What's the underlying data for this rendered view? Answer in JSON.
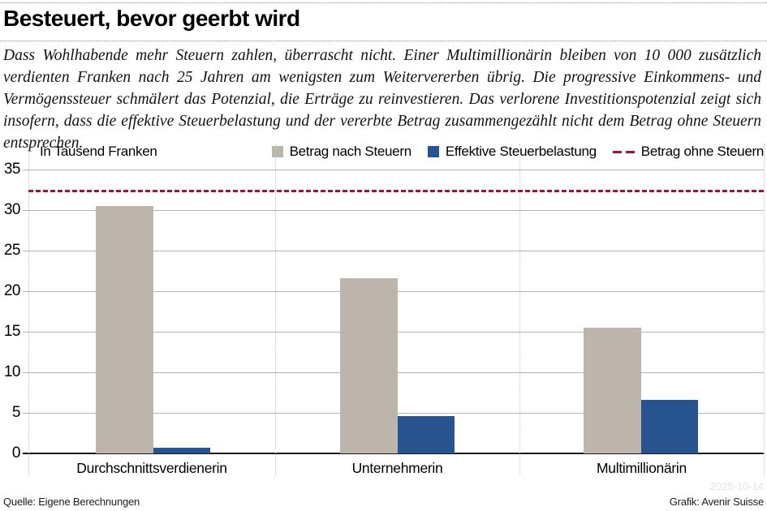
{
  "header": {
    "title": "Besteuert, bevor geerbt wird"
  },
  "intro": {
    "text": "Dass Wohlhabende mehr Steuern zahlen, überrascht nicht. Einer Multimillionärin bleiben von 10 000 zusätzlich verdienten Franken nach 25 Jahren am wenigsten zum Weitervererben übrig. Die progressive Einkommens- und Vermögenssteuer schmälert das Potenzial, die Erträge zu reinvestieren. Das verlorene Investitionspotenzial zeigt sich insofern, dass die effektive Steuerbelastung und der vererbte Betrag zusammengezählt nicht dem Betrag ohne Steuern entsprechen."
  },
  "chart_data": {
    "type": "bar",
    "title": "Besteuert, bevor geerbt wird",
    "unit_label": "In Tausend Franken",
    "categories": [
      "Durchschnittsverdienerin",
      "Unternehmerin",
      "Multimillionärin"
    ],
    "series": [
      {
        "name": "Betrag nach Steuern",
        "color": "#bdb5ab",
        "values": [
          30.5,
          21.6,
          15.5
        ]
      },
      {
        "name": "Effektive Steuerbelastung",
        "color": "#27548e",
        "values": [
          0.7,
          4.6,
          6.6
        ]
      }
    ],
    "reference_line": {
      "name": "Betrag ohne Steuern",
      "value": 32.3,
      "color": "#a60f3c",
      "style": "dashed"
    },
    "ylim": [
      0,
      35
    ],
    "ytick_step": 5,
    "grid": true,
    "legend_position": "top-right"
  },
  "footer": {
    "source": "Quelle: Eigene Berechnungen",
    "credit": "Grafik: Avenir Suisse",
    "watermark": "2025-10-14"
  },
  "colors": {
    "grid": "#b5b5b5",
    "axis": "#1a1a1a",
    "separator": "#c6c6c6"
  }
}
